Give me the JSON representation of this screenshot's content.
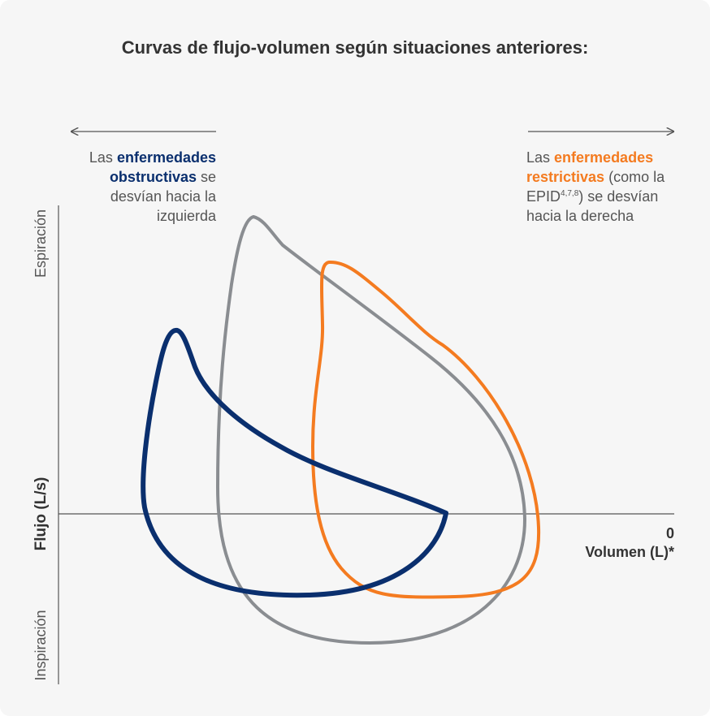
{
  "title": "Curvas de flujo-volumen según situaciones anteriores:",
  "left_note": {
    "prefix": "Las ",
    "highlight": "enfermedades obstructivas",
    "suffix": " se desvían hacia la izquierda"
  },
  "right_note": {
    "prefix": "Las ",
    "highlight": "enfermedades restrictivas",
    "middle": " (como la EPID",
    "superscript": "4,7,8",
    "suffix": ") se desvían hacia la derecha"
  },
  "colors": {
    "obstructive": "#0a2f6e",
    "normal": "#8a8d91",
    "restrictive": "#f47b20",
    "axis": "#555555"
  },
  "chart_data": {
    "type": "line",
    "ylabel": "Flujo (L/s)",
    "y_top_label": "Espiración",
    "y_bottom_label": "Inspiración",
    "x_zero_label": "0",
    "xlabel": "Volumen (L)*",
    "series": [
      {
        "key": "normal",
        "color": "#8a8d91"
      },
      {
        "key": "obstructive",
        "color": "#0a2f6e"
      },
      {
        "key": "restrictive",
        "color": "#f47b20"
      }
    ]
  }
}
